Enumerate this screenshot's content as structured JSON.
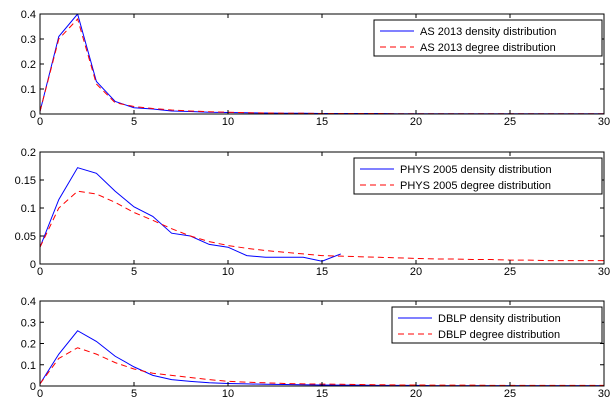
{
  "chart_data": [
    {
      "type": "line",
      "xlim": [
        0,
        30
      ],
      "ylim": [
        0,
        0.4
      ],
      "xticks": [
        "0",
        "5",
        "10",
        "15",
        "20",
        "25",
        "30"
      ],
      "yticks": [
        "0",
        "0.1",
        "0.2",
        "0.3",
        "0.4"
      ],
      "legend_position": "top-right",
      "series": [
        {
          "name": "AS 2013 density distribution",
          "color": "#0000ff",
          "style": "solid",
          "x": [
            0,
            1,
            2,
            3,
            4,
            5,
            6,
            7,
            8,
            9,
            10,
            11,
            12,
            13,
            14,
            15,
            16,
            17,
            18,
            19,
            20,
            21,
            22,
            23,
            24,
            25,
            26,
            27,
            28,
            29,
            30
          ],
          "y": [
            0.01,
            0.31,
            0.4,
            0.13,
            0.05,
            0.025,
            0.02,
            0.012,
            0.01,
            0.007,
            0.006,
            0.005,
            0.004,
            0.003,
            0.003,
            0.002,
            0.002,
            0.002,
            0.002,
            0.001,
            0.001,
            0.001,
            0.001,
            0.001,
            0.001,
            0.001,
            0.001,
            0.001,
            0.001,
            0.001,
            0.001
          ]
        },
        {
          "name": "AS 2013 degree distribution",
          "color": "#ff0000",
          "style": "dashed",
          "x": [
            0,
            1,
            2,
            3,
            4,
            5,
            6,
            7,
            8,
            9,
            10,
            11,
            12,
            13,
            14,
            15,
            16,
            17,
            18,
            19,
            20,
            21,
            22,
            23,
            24,
            25,
            26,
            27,
            28,
            29,
            30
          ],
          "y": [
            0.01,
            0.3,
            0.38,
            0.12,
            0.045,
            0.03,
            0.022,
            0.016,
            0.012,
            0.009,
            0.007,
            0.005,
            0.004,
            0.003,
            0.003,
            0.002,
            0.002,
            0.002,
            0.002,
            0.001,
            0.001,
            0.001,
            0.001,
            0.001,
            0.001,
            0.001,
            0.001,
            0.001,
            0.001,
            0.001,
            0.001
          ]
        }
      ]
    },
    {
      "type": "line",
      "xlim": [
        0,
        30
      ],
      "ylim": [
        0,
        0.2
      ],
      "xticks": [
        "0",
        "5",
        "10",
        "15",
        "20",
        "25",
        "30"
      ],
      "yticks": [
        "0",
        "0.05",
        "0.1",
        "0.15",
        "0.2"
      ],
      "legend_position": "top-right",
      "series": [
        {
          "name": "PHYS 2005 density distribution",
          "color": "#0000ff",
          "style": "solid",
          "x": [
            0,
            1,
            2,
            3,
            4,
            5,
            6,
            7,
            8,
            9,
            10,
            11,
            12,
            13,
            14,
            15,
            16
          ],
          "y": [
            0.03,
            0.115,
            0.172,
            0.162,
            0.13,
            0.102,
            0.085,
            0.055,
            0.05,
            0.035,
            0.03,
            0.015,
            0.012,
            0.012,
            0.012,
            0.005,
            0.018
          ]
        },
        {
          "name": "PHYS 2005 degree distribution",
          "color": "#ff0000",
          "style": "dashed",
          "x": [
            0,
            1,
            2,
            3,
            4,
            5,
            6,
            7,
            8,
            9,
            10,
            11,
            12,
            13,
            14,
            15,
            16,
            17,
            18,
            19,
            20,
            21,
            22,
            23,
            24,
            25,
            26,
            27,
            28,
            29,
            30
          ],
          "y": [
            0.03,
            0.1,
            0.13,
            0.125,
            0.11,
            0.092,
            0.078,
            0.063,
            0.05,
            0.04,
            0.033,
            0.028,
            0.024,
            0.021,
            0.018,
            0.015,
            0.014,
            0.013,
            0.012,
            0.011,
            0.01,
            0.009,
            0.009,
            0.008,
            0.008,
            0.007,
            0.007,
            0.006,
            0.006,
            0.006,
            0.006
          ]
        }
      ]
    },
    {
      "type": "line",
      "xlim": [
        0,
        30
      ],
      "ylim": [
        0,
        0.4
      ],
      "xticks": [
        "0",
        "5",
        "10",
        "15",
        "20",
        "25",
        "30"
      ],
      "yticks": [
        "0",
        "0.1",
        "0.2",
        "0.3",
        "0.4"
      ],
      "legend_position": "top-right",
      "series": [
        {
          "name": "DBLP density distribution",
          "color": "#0000ff",
          "style": "solid",
          "x": [
            0,
            1,
            2,
            3,
            4,
            5,
            6,
            7,
            8,
            9,
            10,
            11,
            12,
            13,
            14,
            15,
            16,
            17,
            18,
            19,
            20,
            21,
            22,
            23,
            24,
            25,
            26,
            27,
            28,
            29,
            30
          ],
          "y": [
            0.01,
            0.15,
            0.26,
            0.21,
            0.14,
            0.09,
            0.05,
            0.03,
            0.022,
            0.015,
            0.012,
            0.01,
            0.008,
            0.007,
            0.006,
            0.005,
            0.004,
            0.004,
            0.003,
            0.003,
            0.003,
            0.002,
            0.002,
            0.002,
            0.002,
            0.002,
            0.002,
            0.002,
            0.002,
            0.002,
            0.002
          ]
        },
        {
          "name": "DBLP degree distribution",
          "color": "#ff0000",
          "style": "dashed",
          "x": [
            0,
            1,
            2,
            3,
            4,
            5,
            6,
            7,
            8,
            9,
            10,
            11,
            12,
            13,
            14,
            15,
            16,
            17,
            18,
            19,
            20,
            21,
            22,
            23,
            24,
            25,
            26,
            27,
            28,
            29,
            30
          ],
          "y": [
            0.01,
            0.13,
            0.18,
            0.15,
            0.11,
            0.08,
            0.06,
            0.05,
            0.04,
            0.03,
            0.022,
            0.018,
            0.015,
            0.012,
            0.01,
            0.009,
            0.008,
            0.007,
            0.006,
            0.005,
            0.005,
            0.004,
            0.004,
            0.004,
            0.003,
            0.003,
            0.003,
            0.003,
            0.003,
            0.003,
            0.003
          ]
        }
      ]
    }
  ]
}
